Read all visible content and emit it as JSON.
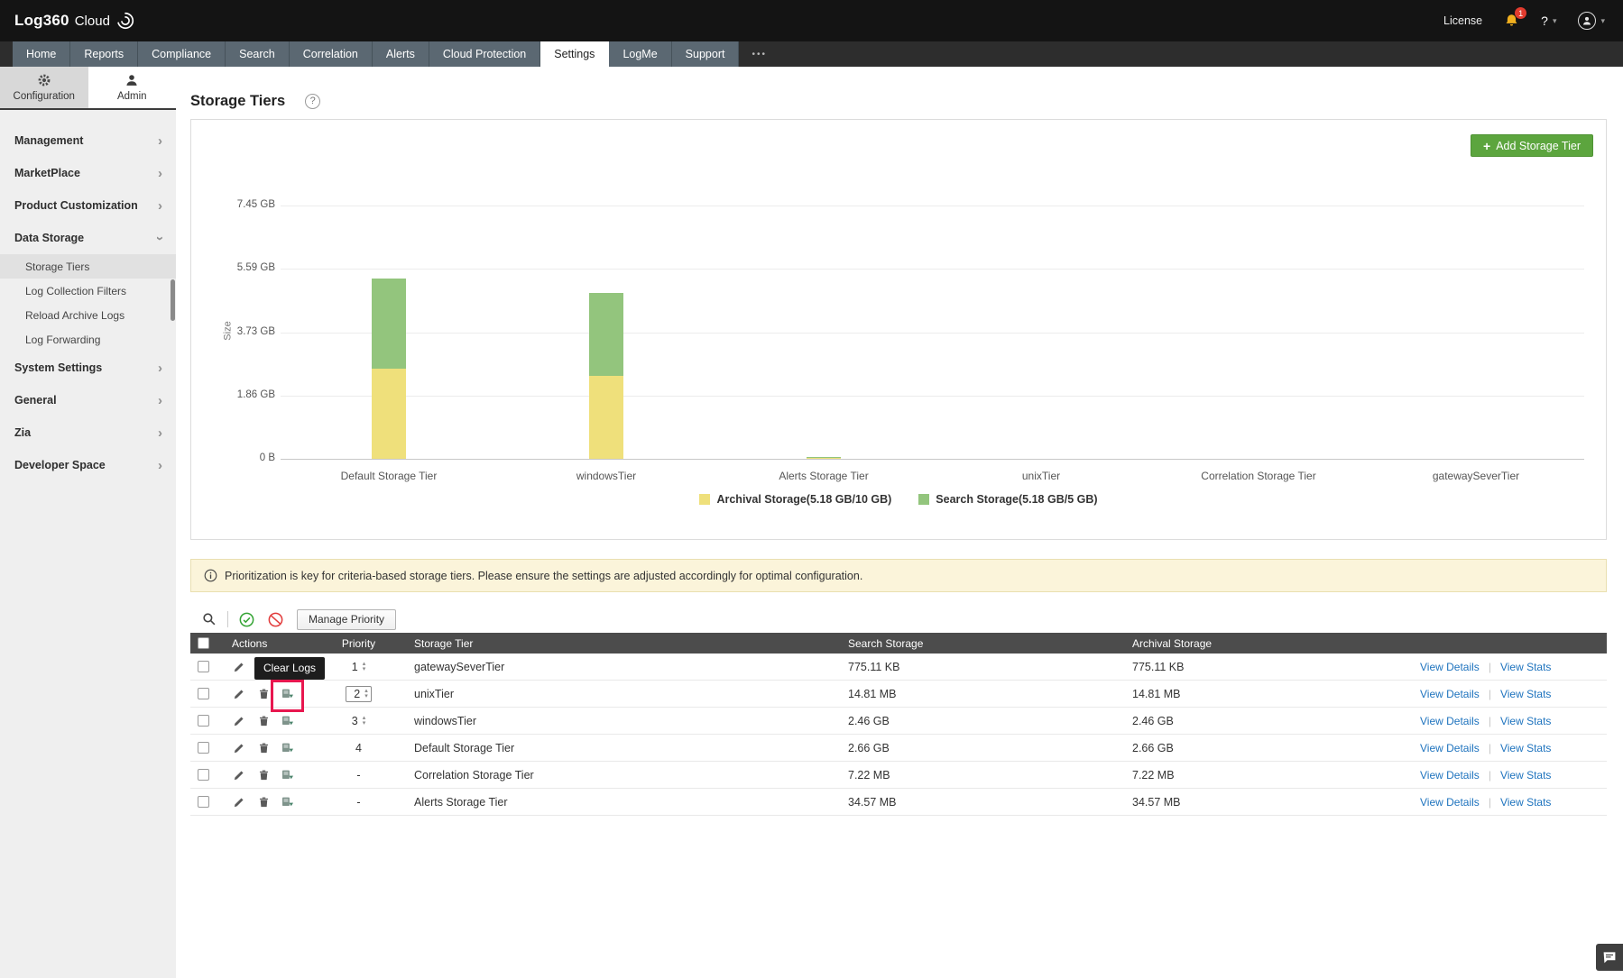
{
  "header": {
    "logo_text": "Log360",
    "logo_cloud": "Cloud",
    "license_label": "License",
    "notification_count": "1",
    "help_label": "?"
  },
  "nav": {
    "tabs": [
      "Home",
      "Reports",
      "Compliance",
      "Search",
      "Correlation",
      "Alerts",
      "Cloud Protection",
      "Settings",
      "LogMe",
      "Support"
    ],
    "active_tab": "Settings",
    "more_label": "•••"
  },
  "sidebar": {
    "tabs": [
      "Configuration",
      "Admin"
    ],
    "active_tab": "Admin",
    "sections": [
      {
        "label": "Management",
        "expanded": false
      },
      {
        "label": "MarketPlace",
        "expanded": false
      },
      {
        "label": "Product Customization",
        "expanded": false
      },
      {
        "label": "Data Storage",
        "expanded": true,
        "items": [
          {
            "label": "Storage Tiers",
            "selected": true
          },
          {
            "label": "Log Collection Filters",
            "selected": false
          },
          {
            "label": "Reload Archive Logs",
            "selected": false
          },
          {
            "label": "Log Forwarding",
            "selected": false
          }
        ]
      },
      {
        "label": "System Settings",
        "expanded": false
      },
      {
        "label": "General",
        "expanded": false
      },
      {
        "label": "Zia",
        "expanded": false
      },
      {
        "label": "Developer Space",
        "expanded": false
      }
    ]
  },
  "page": {
    "title": "Storage Tiers",
    "help_label": "?"
  },
  "add_button_label": "Add Storage Tier",
  "chart_data": {
    "type": "bar",
    "stacked": true,
    "ylabel": "Size",
    "ylim_gb": [
      0,
      7.45
    ],
    "ytick_labels": [
      "0 B",
      "1.86 GB",
      "3.73 GB",
      "5.59 GB",
      "7.45 GB"
    ],
    "categories": [
      "Default Storage Tier",
      "windowsTier",
      "Alerts Storage Tier",
      "unixTier",
      "Correlation Storage Tier",
      "gatewaySeverTier"
    ],
    "series": [
      {
        "name": "Archival Storage(5.18 GB/10 GB)",
        "color": "#efe07b",
        "values_gb": [
          2.66,
          2.46,
          0.0346,
          0.0148,
          0.0072,
          0.00076
        ]
      },
      {
        "name": "Search Storage(5.18 GB/5 GB)",
        "color": "#93c57d",
        "values_gb": [
          2.66,
          2.46,
          0.0346,
          0.0148,
          0.0072,
          0.00076
        ]
      }
    ],
    "legend_position": "bottom",
    "grid": true
  },
  "banner": {
    "text": "Prioritization is key for criteria-based storage tiers. Please ensure the settings are adjusted accordingly for optimal configuration."
  },
  "toolbar": {
    "manage_priority_label": "Manage Priority"
  },
  "table": {
    "columns": [
      "Actions",
      "Priority",
      "Storage Tier",
      "Search Storage",
      "Archival Storage"
    ],
    "view_details_label": "View Details",
    "view_stats_label": "View Stats",
    "link_separator": "|",
    "rows": [
      {
        "priority": "1",
        "priority_input": "spinner",
        "tier": "gatewaySeverTier",
        "search_storage": "775.11 KB",
        "archival_storage": "775.11 KB"
      },
      {
        "priority": "2",
        "priority_input": "spinner-box",
        "tier": "unixTier",
        "search_storage": "14.81 MB",
        "archival_storage": "14.81 MB"
      },
      {
        "priority": "3",
        "priority_input": "spinner",
        "tier": "windowsTier",
        "search_storage": "2.46 GB",
        "archival_storage": "2.46 GB"
      },
      {
        "priority": "4",
        "priority_input": "text",
        "tier": "Default Storage Tier",
        "search_storage": "2.66 GB",
        "archival_storage": "2.66 GB"
      },
      {
        "priority": "-",
        "priority_input": "text",
        "tier": "Correlation Storage Tier",
        "search_storage": "7.22 MB",
        "archival_storage": "7.22 MB"
      },
      {
        "priority": "-",
        "priority_input": "text",
        "tier": "Alerts Storage Tier",
        "search_storage": "34.57 MB",
        "archival_storage": "34.57 MB"
      }
    ]
  },
  "tooltip": {
    "text": "Clear Logs"
  },
  "annotation": {
    "highlight_color": "#e8174f"
  },
  "icons": {
    "plus": "+",
    "caret_down": "▾",
    "spinner_up": "▴",
    "spinner_down": "▾",
    "chevron_right": "›"
  }
}
